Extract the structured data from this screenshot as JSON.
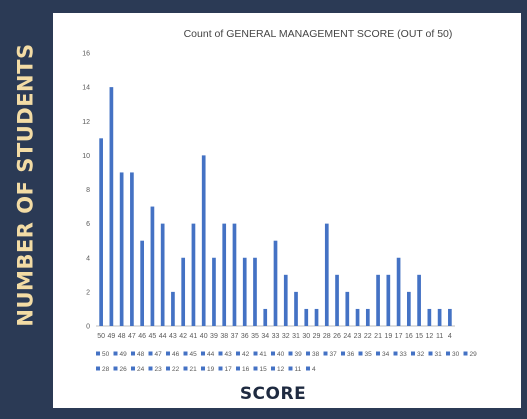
{
  "chart_data": {
    "type": "bar",
    "title": "Count of GENERAL MANAGEMENT SCORE (OUT of 50)",
    "xlabel": "SCORE",
    "ylabel": "NUMBER OF STUDENTS",
    "ylim": [
      0,
      16
    ],
    "yticks": [
      0,
      2,
      4,
      6,
      8,
      10,
      12,
      14,
      16
    ],
    "grid": false,
    "legend_position": "bottom",
    "categories": [
      "50",
      "49",
      "48",
      "47",
      "46",
      "45",
      "44",
      "43",
      "42",
      "41",
      "40",
      "39",
      "38",
      "37",
      "36",
      "35",
      "34",
      "33",
      "32",
      "31",
      "30",
      "29",
      "28",
      "26",
      "24",
      "23",
      "22",
      "21",
      "19",
      "17",
      "16",
      "15",
      "12",
      "11",
      "4"
    ],
    "values": [
      11,
      14,
      9,
      9,
      5,
      7,
      6,
      2,
      4,
      6,
      10,
      4,
      6,
      6,
      4,
      4,
      1,
      5,
      3,
      2,
      1,
      1,
      6,
      3,
      2,
      1,
      1,
      3,
      3,
      4,
      2,
      3,
      1,
      1,
      1
    ],
    "bar_color": "#4472c4",
    "background_color": "#2b3a55",
    "title_color": "#f3dca5"
  }
}
